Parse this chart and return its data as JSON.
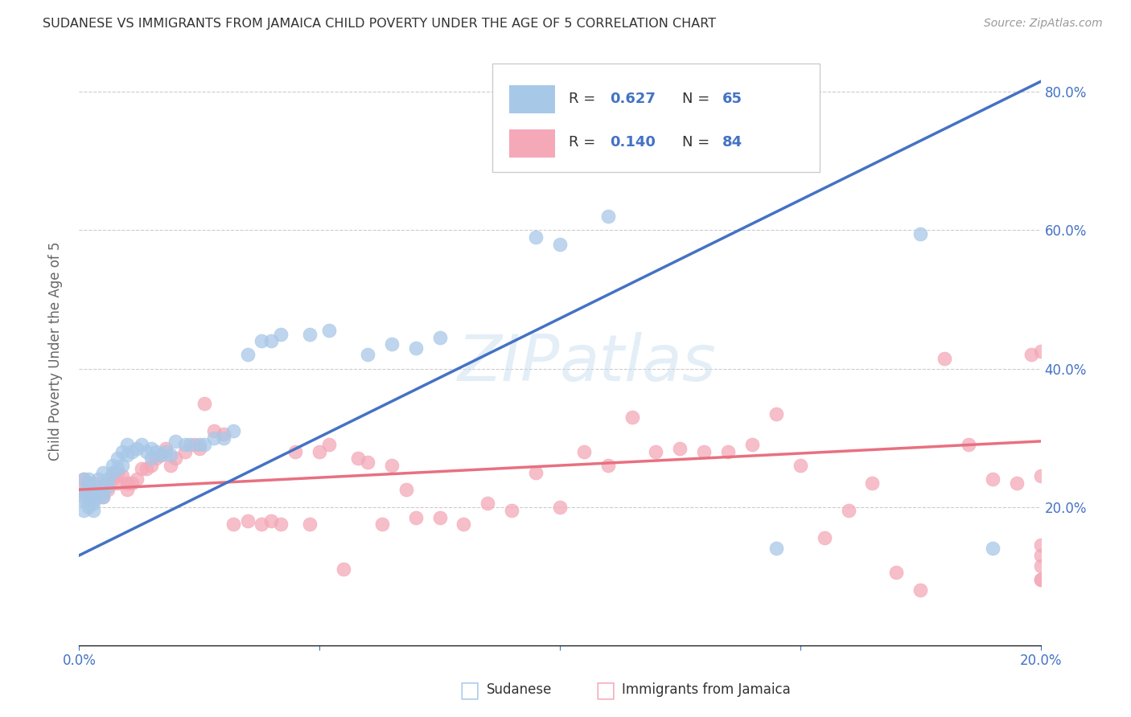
{
  "title": "SUDANESE VS IMMIGRANTS FROM JAMAICA CHILD POVERTY UNDER THE AGE OF 5 CORRELATION CHART",
  "source": "Source: ZipAtlas.com",
  "ylabel": "Child Poverty Under the Age of 5",
  "xlim": [
    0.0,
    0.2
  ],
  "ylim": [
    0.0,
    0.85
  ],
  "yticks": [
    0.0,
    0.2,
    0.4,
    0.6,
    0.8
  ],
  "xticks": [
    0.0,
    0.05,
    0.1,
    0.15,
    0.2
  ],
  "blue_R": 0.627,
  "blue_N": 65,
  "pink_R": 0.14,
  "pink_N": 84,
  "blue_color": "#A8C8E8",
  "pink_color": "#F4A8B8",
  "blue_line_color": "#4472C4",
  "pink_line_color": "#E87080",
  "background_color": "#FFFFFF",
  "grid_color": "#CCCCCC",
  "blue_line_x0": 0.0,
  "blue_line_y0": 0.13,
  "blue_line_x1": 0.2,
  "blue_line_y1": 0.815,
  "pink_line_x0": 0.0,
  "pink_line_y0": 0.225,
  "pink_line_x1": 0.2,
  "pink_line_y1": 0.295,
  "blue_x": [
    0.001,
    0.001,
    0.001,
    0.001,
    0.001,
    0.002,
    0.002,
    0.002,
    0.002,
    0.002,
    0.003,
    0.003,
    0.003,
    0.003,
    0.004,
    0.004,
    0.004,
    0.005,
    0.005,
    0.005,
    0.006,
    0.006,
    0.007,
    0.007,
    0.008,
    0.008,
    0.009,
    0.009,
    0.01,
    0.01,
    0.011,
    0.012,
    0.013,
    0.014,
    0.015,
    0.015,
    0.016,
    0.017,
    0.018,
    0.019,
    0.02,
    0.022,
    0.023,
    0.025,
    0.026,
    0.028,
    0.03,
    0.032,
    0.035,
    0.038,
    0.04,
    0.042,
    0.048,
    0.052,
    0.06,
    0.065,
    0.07,
    0.075,
    0.095,
    0.1,
    0.11,
    0.115,
    0.145,
    0.175,
    0.19
  ],
  "blue_y": [
    0.24,
    0.22,
    0.21,
    0.215,
    0.195,
    0.205,
    0.2,
    0.225,
    0.23,
    0.24,
    0.215,
    0.22,
    0.205,
    0.195,
    0.23,
    0.24,
    0.215,
    0.25,
    0.22,
    0.215,
    0.24,
    0.23,
    0.26,
    0.25,
    0.27,
    0.255,
    0.28,
    0.26,
    0.29,
    0.275,
    0.28,
    0.285,
    0.29,
    0.28,
    0.285,
    0.27,
    0.28,
    0.275,
    0.28,
    0.275,
    0.295,
    0.29,
    0.29,
    0.29,
    0.29,
    0.3,
    0.3,
    0.31,
    0.42,
    0.44,
    0.44,
    0.45,
    0.45,
    0.455,
    0.42,
    0.435,
    0.43,
    0.445,
    0.59,
    0.58,
    0.62,
    0.72,
    0.14,
    0.595,
    0.14
  ],
  "pink_x": [
    0.001,
    0.001,
    0.002,
    0.002,
    0.002,
    0.003,
    0.003,
    0.004,
    0.004,
    0.005,
    0.005,
    0.006,
    0.007,
    0.007,
    0.008,
    0.008,
    0.009,
    0.01,
    0.01,
    0.011,
    0.012,
    0.013,
    0.014,
    0.015,
    0.016,
    0.017,
    0.018,
    0.019,
    0.02,
    0.022,
    0.024,
    0.025,
    0.026,
    0.028,
    0.03,
    0.032,
    0.035,
    0.038,
    0.04,
    0.042,
    0.045,
    0.048,
    0.05,
    0.052,
    0.055,
    0.058,
    0.06,
    0.063,
    0.065,
    0.068,
    0.07,
    0.075,
    0.08,
    0.085,
    0.09,
    0.095,
    0.1,
    0.105,
    0.11,
    0.115,
    0.12,
    0.125,
    0.13,
    0.135,
    0.14,
    0.145,
    0.15,
    0.155,
    0.16,
    0.165,
    0.17,
    0.175,
    0.18,
    0.185,
    0.19,
    0.195,
    0.198,
    0.2,
    0.2,
    0.2,
    0.2,
    0.2,
    0.2,
    0.2
  ],
  "pink_y": [
    0.24,
    0.225,
    0.235,
    0.215,
    0.22,
    0.21,
    0.235,
    0.225,
    0.22,
    0.215,
    0.23,
    0.225,
    0.245,
    0.24,
    0.235,
    0.25,
    0.245,
    0.235,
    0.225,
    0.235,
    0.24,
    0.255,
    0.255,
    0.26,
    0.27,
    0.275,
    0.285,
    0.26,
    0.27,
    0.28,
    0.29,
    0.285,
    0.35,
    0.31,
    0.305,
    0.175,
    0.18,
    0.175,
    0.18,
    0.175,
    0.28,
    0.175,
    0.28,
    0.29,
    0.11,
    0.27,
    0.265,
    0.175,
    0.26,
    0.225,
    0.185,
    0.185,
    0.175,
    0.205,
    0.195,
    0.25,
    0.2,
    0.28,
    0.26,
    0.33,
    0.28,
    0.285,
    0.28,
    0.28,
    0.29,
    0.335,
    0.26,
    0.155,
    0.195,
    0.235,
    0.105,
    0.08,
    0.415,
    0.29,
    0.24,
    0.235,
    0.42,
    0.115,
    0.245,
    0.425,
    0.095,
    0.095,
    0.145,
    0.13
  ]
}
